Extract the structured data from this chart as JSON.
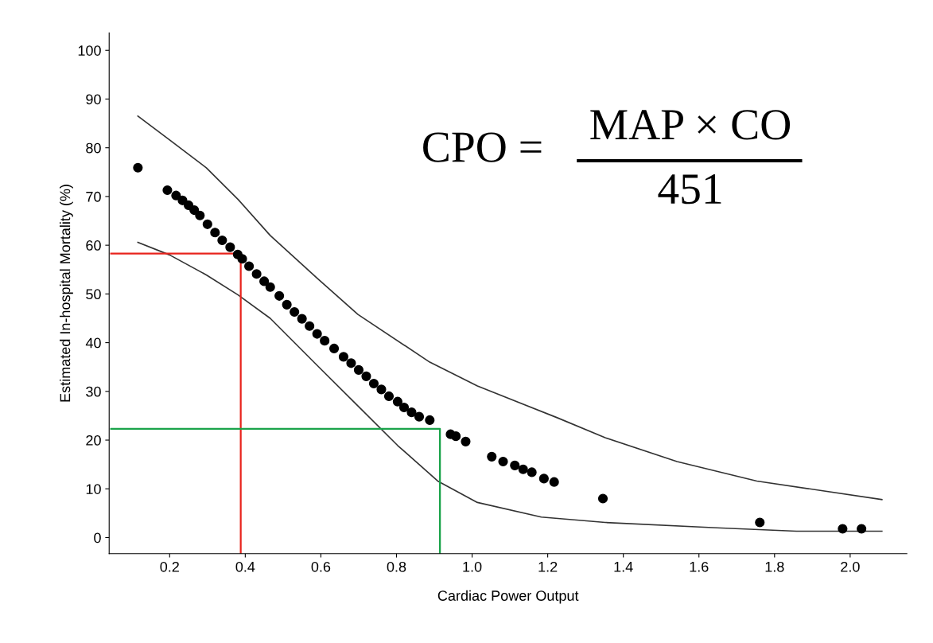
{
  "chart_data": {
    "type": "scatter",
    "xlabel": "Cardiac Power Output",
    "ylabel": "Estimated In-hospital Mortality (%)",
    "xlim": [
      0.04,
      2.15
    ],
    "ylim": [
      -3.3,
      103.6
    ],
    "xticks": [
      {
        "value": 0.2,
        "label": "0.2"
      },
      {
        "value": 0.4,
        "label": "0.4"
      },
      {
        "value": 0.6,
        "label": "0.6"
      },
      {
        "value": 0.8,
        "label": "0.8"
      },
      {
        "value": 1.0,
        "label": "1.0"
      },
      {
        "value": 1.2,
        "label": "1.2"
      },
      {
        "value": 1.4,
        "label": "1.4"
      },
      {
        "value": 1.6,
        "label": "1.6"
      },
      {
        "value": 1.8,
        "label": "1.8"
      },
      {
        "value": 2.0,
        "label": "2.0"
      }
    ],
    "yticks": [
      0,
      10,
      20,
      30,
      40,
      50,
      60,
      70,
      80,
      90,
      100
    ],
    "grid": false,
    "legend": false,
    "series": [
      {
        "type": "scatter",
        "marker": "circle",
        "color": "#000000",
        "x": [
          0.116,
          0.194,
          0.217,
          0.234,
          0.25,
          0.265,
          0.28,
          0.3,
          0.32,
          0.339,
          0.36,
          0.38,
          0.392,
          0.41,
          0.43,
          0.45,
          0.466,
          0.49,
          0.51,
          0.53,
          0.55,
          0.57,
          0.59,
          0.61,
          0.635,
          0.66,
          0.68,
          0.7,
          0.72,
          0.74,
          0.76,
          0.78,
          0.803,
          0.82,
          0.84,
          0.86,
          0.888,
          0.943,
          0.957,
          0.983,
          1.052,
          1.082,
          1.113,
          1.135,
          1.158,
          1.19,
          1.217,
          1.346,
          1.761,
          1.98,
          2.03
        ],
        "values": [
          75.9,
          71.3,
          70.2,
          69.2,
          68.2,
          67.2,
          66.1,
          64.3,
          62.6,
          61.0,
          59.6,
          58.1,
          57.2,
          55.7,
          54.1,
          52.6,
          51.4,
          49.6,
          47.8,
          46.3,
          44.9,
          43.4,
          41.8,
          40.4,
          38.8,
          37.1,
          35.8,
          34.4,
          33.1,
          31.6,
          30.4,
          29.0,
          27.9,
          26.7,
          25.7,
          24.8,
          24.1,
          21.2,
          20.8,
          19.7,
          16.6,
          15.6,
          14.8,
          14.0,
          13.4,
          12.1,
          11.4,
          8.0,
          3.1,
          1.8,
          1.8
        ]
      },
      {
        "type": "line",
        "color": "#333333",
        "x": [
          0.116,
          0.2,
          0.297,
          0.381,
          0.466,
          0.592,
          0.698,
          0.888,
          1.014,
          1.225,
          1.352,
          1.542,
          1.753,
          2.084
        ],
        "values": [
          86.5,
          81.6,
          75.9,
          69.4,
          62.0,
          53.1,
          45.8,
          36.0,
          31.1,
          24.6,
          20.5,
          15.6,
          11.6,
          7.8
        ]
      },
      {
        "type": "line",
        "color": "#333333",
        "x": [
          0.116,
          0.2,
          0.297,
          0.381,
          0.466,
          0.592,
          0.698,
          0.803,
          0.909,
          1.014,
          1.183,
          1.352,
          1.647,
          1.858,
          2.084
        ],
        "values": [
          60.6,
          58.0,
          53.9,
          49.8,
          45.0,
          35.2,
          27.0,
          18.9,
          11.6,
          7.2,
          4.2,
          3.1,
          2.0,
          1.3,
          1.3
        ]
      },
      {
        "type": "line",
        "color": "#e8231c",
        "x": [
          0.045,
          0.388,
          0.388
        ],
        "values": [
          58.3,
          58.3,
          -3.3
        ]
      },
      {
        "type": "line",
        "color": "#1aa34a",
        "x": [
          0.045,
          0.915,
          0.915
        ],
        "values": [
          22.3,
          22.3,
          -3.3
        ]
      }
    ],
    "annotations": [
      "CPO =",
      "MAP × CO",
      "451"
    ]
  }
}
